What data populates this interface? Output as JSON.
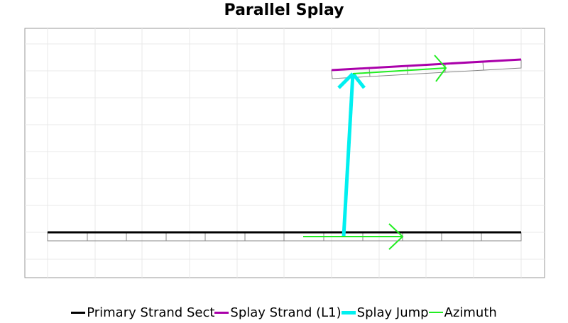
{
  "title": "Parallel Splay",
  "legend": [
    {
      "label": "Primary Strand Sect",
      "color": "#000000"
    },
    {
      "label": "Splay Strand (L1)",
      "color": "#aa00aa"
    },
    {
      "label": "Splay Jump",
      "color": "#00f0f0"
    },
    {
      "label": "Azimuth",
      "color": "#22ee22"
    }
  ],
  "colors": {
    "primary": "#000000",
    "splay": "#aa00aa",
    "jump": "#00f0f0",
    "azimuth": "#22ee22",
    "grid": "#e6e6e6",
    "frame": "#999999"
  }
}
